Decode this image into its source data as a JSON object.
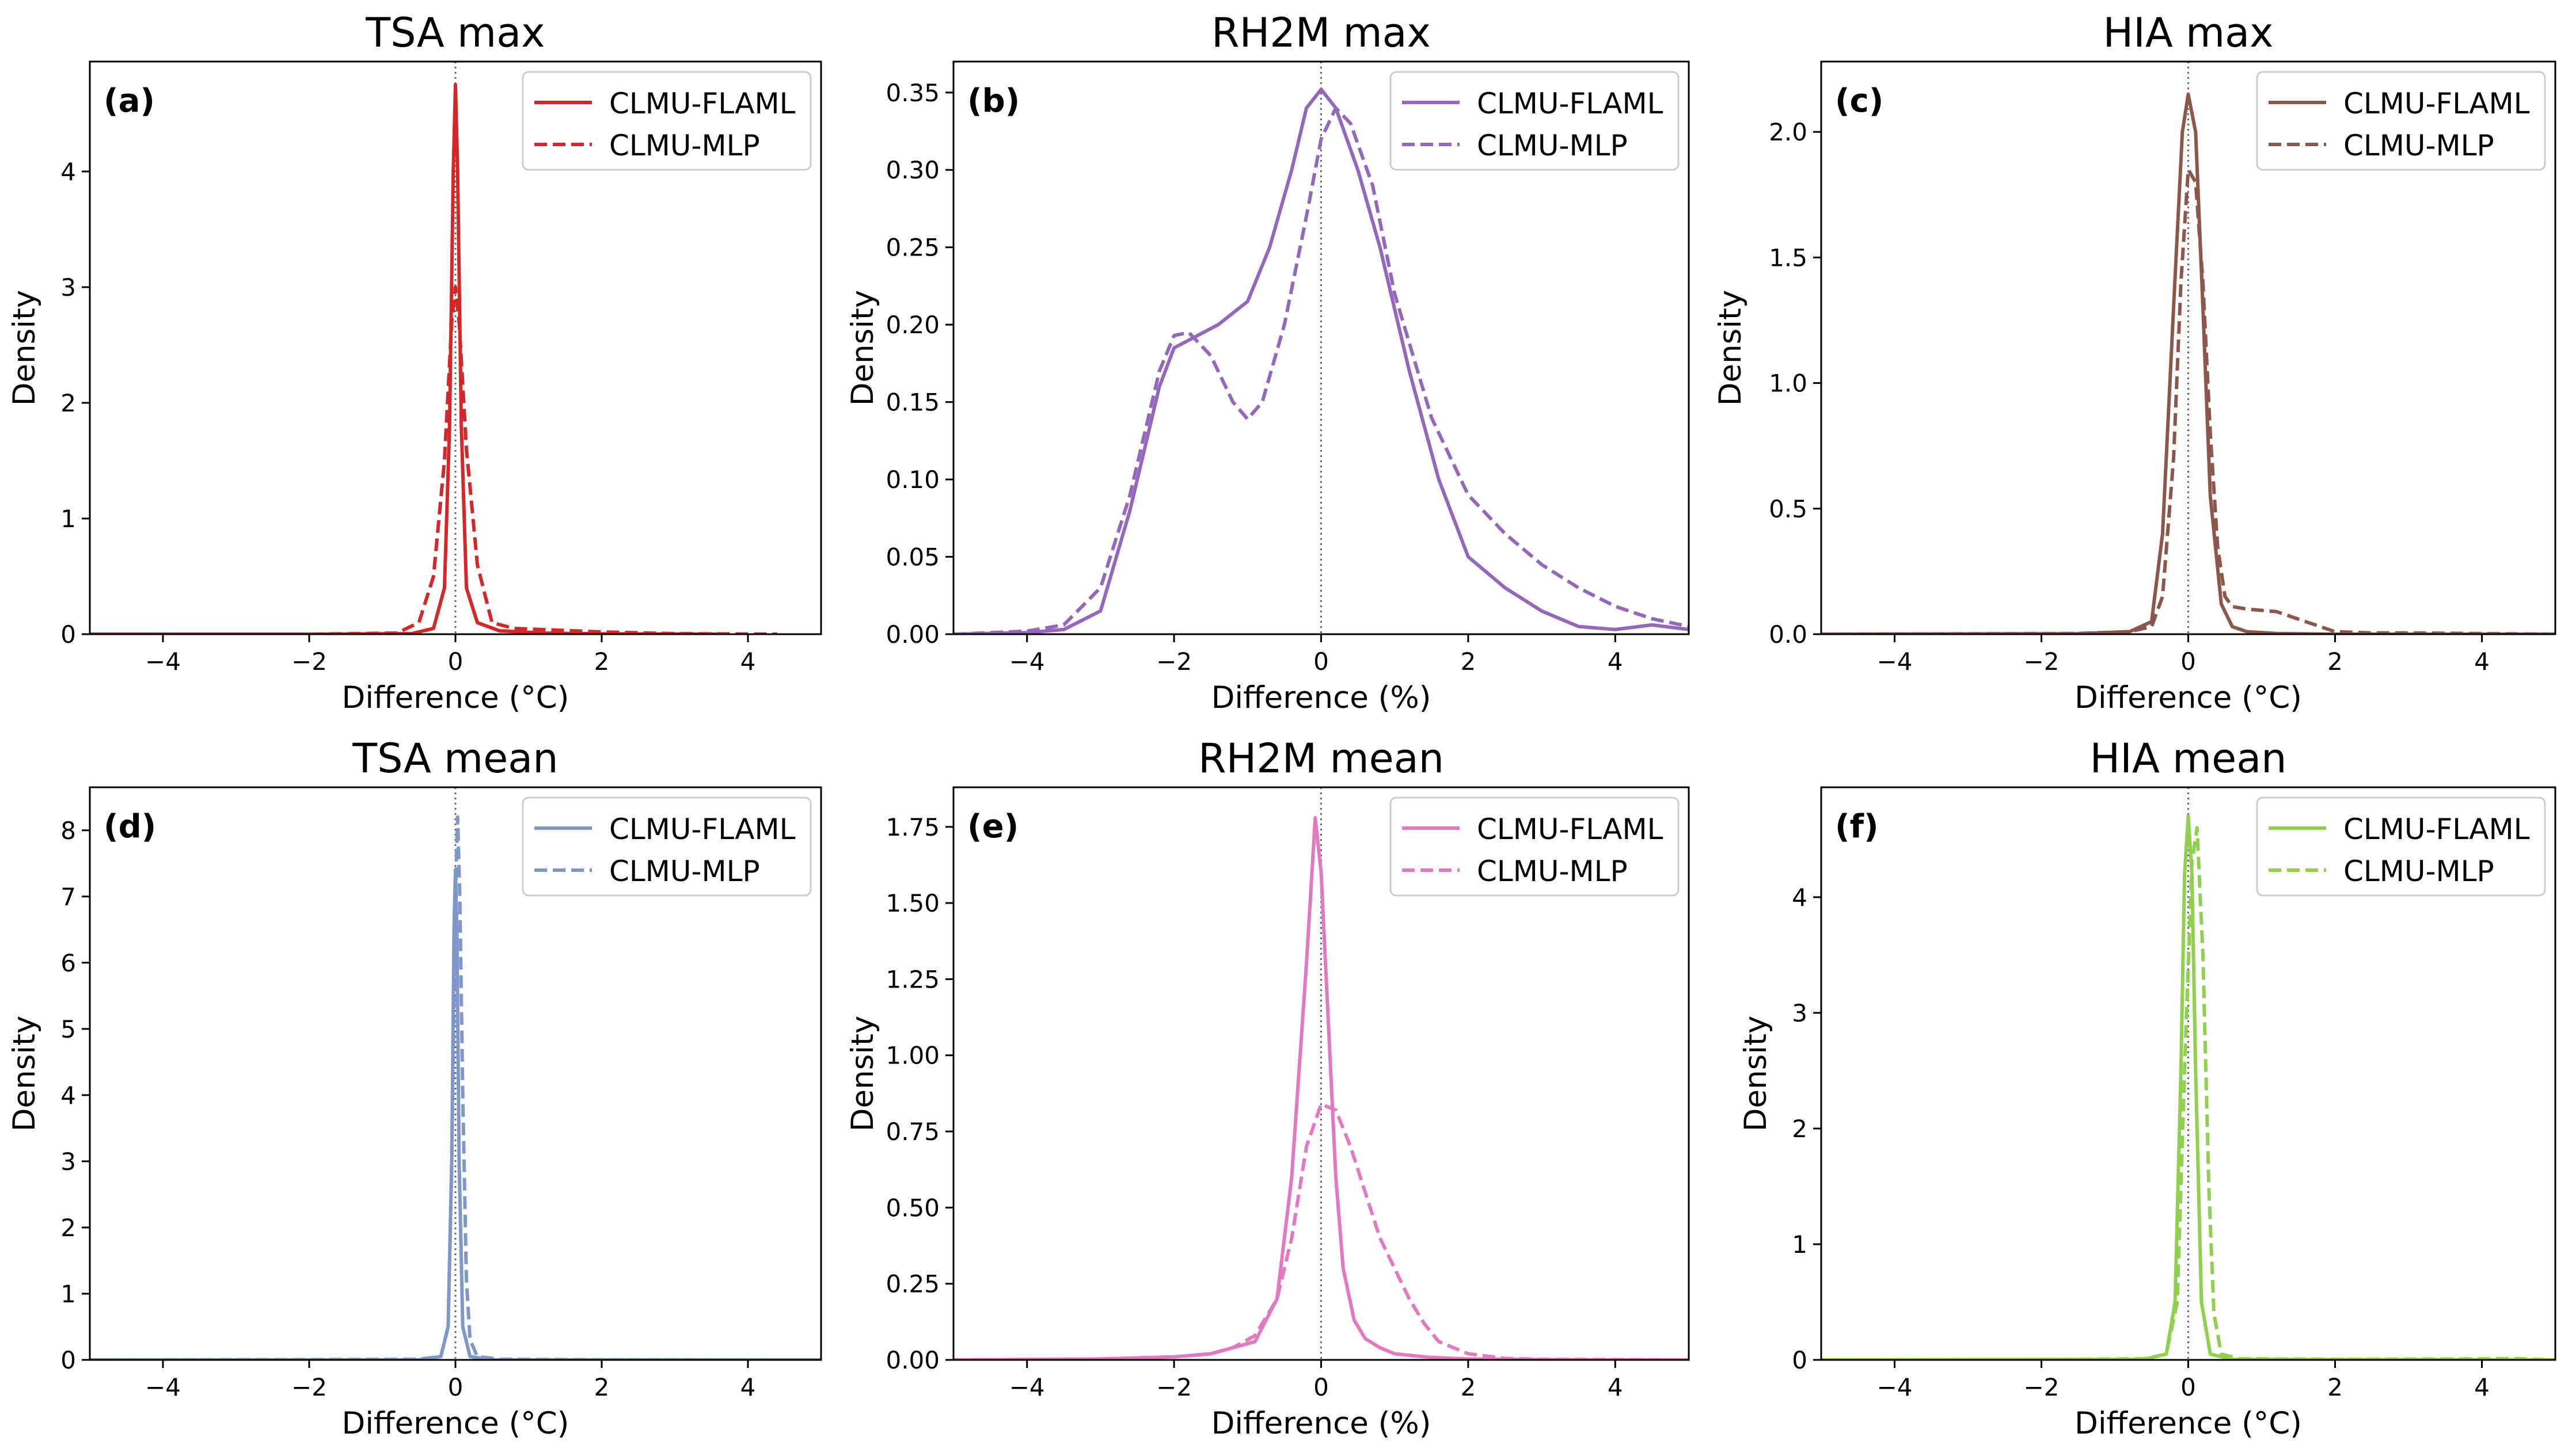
{
  "chart_data": [
    {
      "type": "line",
      "title": "TSA max",
      "panel_label": "(a)",
      "xlabel": "Difference (°C)",
      "ylabel": "Density",
      "xlim": [
        -5,
        5
      ],
      "ylim": [
        0,
        4.95
      ],
      "xticks": [
        -4,
        -2,
        0,
        2,
        4
      ],
      "xtick_labels": [
        "−4",
        "−2",
        "0",
        "2",
        "4"
      ],
      "yticks": [
        0,
        1,
        2,
        3,
        4
      ],
      "ytick_labels": [
        "0",
        "1",
        "2",
        "3",
        "4"
      ],
      "color": "#d62728",
      "reference_line_x": 0,
      "legend_position": "upper right",
      "series": [
        {
          "name": "CLMU-FLAML",
          "style": "solid",
          "x": [
            -5,
            -2,
            -0.6,
            -0.3,
            -0.15,
            -0.08,
            -0.03,
            0,
            0.03,
            0.08,
            0.15,
            0.3,
            0.6,
            1.2,
            2,
            3.7
          ],
          "y": [
            0,
            0,
            0.005,
            0.05,
            0.4,
            1.8,
            4.0,
            4.75,
            4.0,
            1.8,
            0.4,
            0.1,
            0.03,
            0.01,
            0.003,
            0
          ]
        },
        {
          "name": "CLMU-MLP",
          "style": "dashed",
          "x": [
            -5,
            -2,
            -0.8,
            -0.5,
            -0.3,
            -0.15,
            -0.05,
            0,
            0.05,
            0.15,
            0.3,
            0.5,
            0.8,
            1.2,
            2,
            3,
            4.4
          ],
          "y": [
            0,
            0,
            0.01,
            0.1,
            0.5,
            1.5,
            2.7,
            3.0,
            2.7,
            1.6,
            0.6,
            0.1,
            0.05,
            0.04,
            0.02,
            0.005,
            0
          ]
        }
      ]
    },
    {
      "type": "line",
      "title": "RH2M max",
      "panel_label": "(b)",
      "xlabel": "Difference (%)",
      "ylabel": "Density",
      "xlim": [
        -5,
        5
      ],
      "ylim": [
        0,
        0.37
      ],
      "xticks": [
        -4,
        -2,
        0,
        2,
        4
      ],
      "xtick_labels": [
        "−4",
        "−2",
        "0",
        "2",
        "4"
      ],
      "yticks": [
        0,
        0.05,
        0.1,
        0.15,
        0.2,
        0.25,
        0.3,
        0.35
      ],
      "ytick_labels": [
        "0.00",
        "0.05",
        "0.10",
        "0.15",
        "0.20",
        "0.25",
        "0.30",
        "0.35"
      ],
      "color": "#9467bd",
      "reference_line_x": 0,
      "legend_position": "upper right",
      "series": [
        {
          "name": "CLMU-FLAML",
          "style": "solid",
          "x": [
            -5,
            -4,
            -3.5,
            -3,
            -2.6,
            -2.2,
            -2,
            -1.8,
            -1.4,
            -1,
            -0.7,
            -0.4,
            -0.2,
            0,
            0.2,
            0.5,
            0.8,
            1.2,
            1.6,
            2,
            2.5,
            3,
            3.5,
            4,
            4.5,
            5
          ],
          "y": [
            0,
            0.001,
            0.003,
            0.015,
            0.08,
            0.16,
            0.185,
            0.19,
            0.2,
            0.215,
            0.25,
            0.3,
            0.34,
            0.352,
            0.34,
            0.3,
            0.25,
            0.17,
            0.1,
            0.05,
            0.03,
            0.015,
            0.005,
            0.003,
            0.006,
            0.003
          ]
        },
        {
          "name": "CLMU-MLP",
          "style": "dashed",
          "x": [
            -5,
            -4,
            -3.5,
            -3,
            -2.6,
            -2.2,
            -2,
            -1.8,
            -1.5,
            -1.2,
            -1,
            -0.8,
            -0.5,
            -0.2,
            0,
            0.2,
            0.4,
            0.7,
            1,
            1.5,
            2,
            2.5,
            3,
            3.5,
            4,
            4.5,
            5
          ],
          "y": [
            0,
            0.002,
            0.006,
            0.03,
            0.09,
            0.17,
            0.193,
            0.195,
            0.18,
            0.15,
            0.139,
            0.15,
            0.2,
            0.27,
            0.32,
            0.34,
            0.33,
            0.29,
            0.22,
            0.14,
            0.09,
            0.065,
            0.045,
            0.03,
            0.018,
            0.01,
            0.005
          ]
        }
      ]
    },
    {
      "type": "line",
      "title": "HIA max",
      "panel_label": "(c)",
      "xlabel": "Difference (°C)",
      "ylabel": "Density",
      "xlim": [
        -5,
        5
      ],
      "ylim": [
        0,
        2.28
      ],
      "xticks": [
        -4,
        -2,
        0,
        2,
        4
      ],
      "xtick_labels": [
        "−4",
        "−2",
        "0",
        "2",
        "4"
      ],
      "yticks": [
        0,
        0.5,
        1,
        1.5,
        2
      ],
      "ytick_labels": [
        "0.0",
        "0.5",
        "1.0",
        "1.5",
        "2.0"
      ],
      "color": "#8c564b",
      "reference_line_x": 0,
      "legend_position": "upper right",
      "series": [
        {
          "name": "CLMU-FLAML",
          "style": "solid",
          "x": [
            -5,
            -1.5,
            -0.8,
            -0.5,
            -0.35,
            -0.2,
            -0.08,
            0,
            0.1,
            0.2,
            0.3,
            0.45,
            0.6,
            0.8,
            1.2,
            2,
            5
          ],
          "y": [
            0,
            0.002,
            0.01,
            0.05,
            0.4,
            1.3,
            2.0,
            2.15,
            2.0,
            1.3,
            0.55,
            0.12,
            0.03,
            0.01,
            0.003,
            0,
            0
          ]
        },
        {
          "name": "CLMU-MLP",
          "style": "dashed",
          "x": [
            -5,
            -1.5,
            -0.8,
            -0.5,
            -0.35,
            -0.2,
            -0.1,
            0,
            0.1,
            0.2,
            0.3,
            0.4,
            0.5,
            0.6,
            0.8,
            1.2,
            1.6,
            2,
            2.5,
            3,
            5
          ],
          "y": [
            0,
            0.003,
            0.01,
            0.03,
            0.15,
            0.7,
            1.4,
            1.85,
            1.8,
            1.4,
            0.8,
            0.35,
            0.15,
            0.11,
            0.1,
            0.09,
            0.05,
            0.01,
            0.005,
            0.005,
            0
          ]
        }
      ]
    },
    {
      "type": "line",
      "title": "TSA mean",
      "panel_label": "(d)",
      "xlabel": "Difference (°C)",
      "ylabel": "Density",
      "xlim": [
        -5,
        5
      ],
      "ylim": [
        0,
        8.65
      ],
      "xticks": [
        -4,
        -2,
        0,
        2,
        4
      ],
      "xtick_labels": [
        "−4",
        "−2",
        "0",
        "2",
        "4"
      ],
      "yticks": [
        0,
        1,
        2,
        3,
        4,
        5,
        6,
        7,
        8
      ],
      "ytick_labels": [
        "0",
        "1",
        "2",
        "3",
        "4",
        "5",
        "6",
        "7",
        "8"
      ],
      "color": "#7f96c9",
      "reference_line_x": 0,
      "legend_position": "upper right",
      "series": [
        {
          "name": "CLMU-FLAML",
          "style": "solid",
          "x": [
            -5,
            -0.5,
            -0.2,
            -0.1,
            -0.05,
            -0.02,
            0,
            0.02,
            0.05,
            0.1,
            0.2,
            0.5,
            5
          ],
          "y": [
            0,
            0,
            0.05,
            0.5,
            3.0,
            6.5,
            7.4,
            6.5,
            3.0,
            0.5,
            0.05,
            0,
            0
          ]
        },
        {
          "name": "CLMU-MLP",
          "style": "dashed",
          "x": [
            -5,
            -2,
            -0.5,
            -0.2,
            -0.1,
            -0.05,
            0,
            0.03,
            0.06,
            0.1,
            0.15,
            0.2,
            0.3,
            0.6,
            2,
            5
          ],
          "y": [
            0,
            0.005,
            0.01,
            0.05,
            0.5,
            3.0,
            7.0,
            8.2,
            7.0,
            4.0,
            1.2,
            0.3,
            0.05,
            0.01,
            0.003,
            0
          ]
        }
      ]
    },
    {
      "type": "line",
      "title": "RH2M mean",
      "panel_label": "(e)",
      "xlabel": "Difference (%)",
      "ylabel": "Density",
      "xlim": [
        -5,
        5
      ],
      "ylim": [
        0,
        1.88
      ],
      "xticks": [
        -4,
        -2,
        0,
        2,
        4
      ],
      "xtick_labels": [
        "−4",
        "−2",
        "0",
        "2",
        "4"
      ],
      "yticks": [
        0,
        0.25,
        0.5,
        0.75,
        1,
        1.25,
        1.5,
        1.75
      ],
      "ytick_labels": [
        "0.00",
        "0.25",
        "0.50",
        "0.75",
        "1.00",
        "1.25",
        "1.50",
        "1.75"
      ],
      "color": "#e377c2",
      "reference_line_x": 0,
      "legend_position": "upper right",
      "series": [
        {
          "name": "CLMU-FLAML",
          "style": "solid",
          "x": [
            -5,
            -3,
            -2,
            -1.5,
            -1.2,
            -0.9,
            -0.6,
            -0.4,
            -0.2,
            -0.08,
            0,
            0.08,
            0.2,
            0.3,
            0.45,
            0.6,
            0.8,
            1,
            1.5,
            2,
            3,
            4,
            5
          ],
          "y": [
            0,
            0.003,
            0.01,
            0.02,
            0.04,
            0.06,
            0.2,
            0.6,
            1.3,
            1.78,
            1.6,
            1.2,
            0.6,
            0.3,
            0.13,
            0.07,
            0.04,
            0.02,
            0.008,
            0.003,
            0.001,
            0,
            0
          ]
        },
        {
          "name": "CLMU-MLP",
          "style": "dashed",
          "x": [
            -5,
            -3,
            -2,
            -1.5,
            -1.2,
            -0.9,
            -0.6,
            -0.4,
            -0.2,
            0,
            0.2,
            0.4,
            0.6,
            0.8,
            1,
            1.2,
            1.4,
            1.6,
            2,
            2.5,
            3,
            5
          ],
          "y": [
            0,
            0.003,
            0.01,
            0.02,
            0.04,
            0.08,
            0.2,
            0.4,
            0.7,
            0.84,
            0.82,
            0.7,
            0.55,
            0.4,
            0.3,
            0.2,
            0.12,
            0.06,
            0.02,
            0.005,
            0.002,
            0
          ]
        }
      ]
    },
    {
      "type": "line",
      "title": "HIA mean",
      "panel_label": "(f)",
      "xlabel": "Difference (°C)",
      "ylabel": "Density",
      "xlim": [
        -5,
        5
      ],
      "ylim": [
        0,
        4.95
      ],
      "xticks": [
        -4,
        -2,
        0,
        2,
        4
      ],
      "xtick_labels": [
        "−4",
        "−2",
        "0",
        "2",
        "4"
      ],
      "yticks": [
        0,
        1,
        2,
        3,
        4
      ],
      "ytick_labels": [
        "0",
        "1",
        "2",
        "3",
        "4"
      ],
      "color": "#8fd14f",
      "reference_line_x": 0,
      "legend_position": "upper right",
      "series": [
        {
          "name": "CLMU-FLAML",
          "style": "solid",
          "x": [
            -5,
            -0.6,
            -0.3,
            -0.18,
            -0.1,
            -0.05,
            0,
            0.05,
            0.1,
            0.18,
            0.3,
            0.6,
            5
          ],
          "y": [
            0,
            0.005,
            0.05,
            0.5,
            2.5,
            4.2,
            4.7,
            4.2,
            2.5,
            0.5,
            0.05,
            0.005,
            0
          ]
        },
        {
          "name": "CLMU-MLP",
          "style": "dashed",
          "x": [
            -5,
            -2,
            -0.6,
            -0.3,
            -0.15,
            -0.05,
            0.05,
            0.12,
            0.2,
            0.28,
            0.35,
            0.45,
            0.7,
            2,
            4.5,
            5
          ],
          "y": [
            0,
            0.003,
            0.01,
            0.05,
            0.5,
            2.5,
            4.3,
            4.6,
            3.5,
            1.5,
            0.4,
            0.05,
            0.01,
            0.005,
            0.01,
            0
          ]
        }
      ]
    }
  ]
}
